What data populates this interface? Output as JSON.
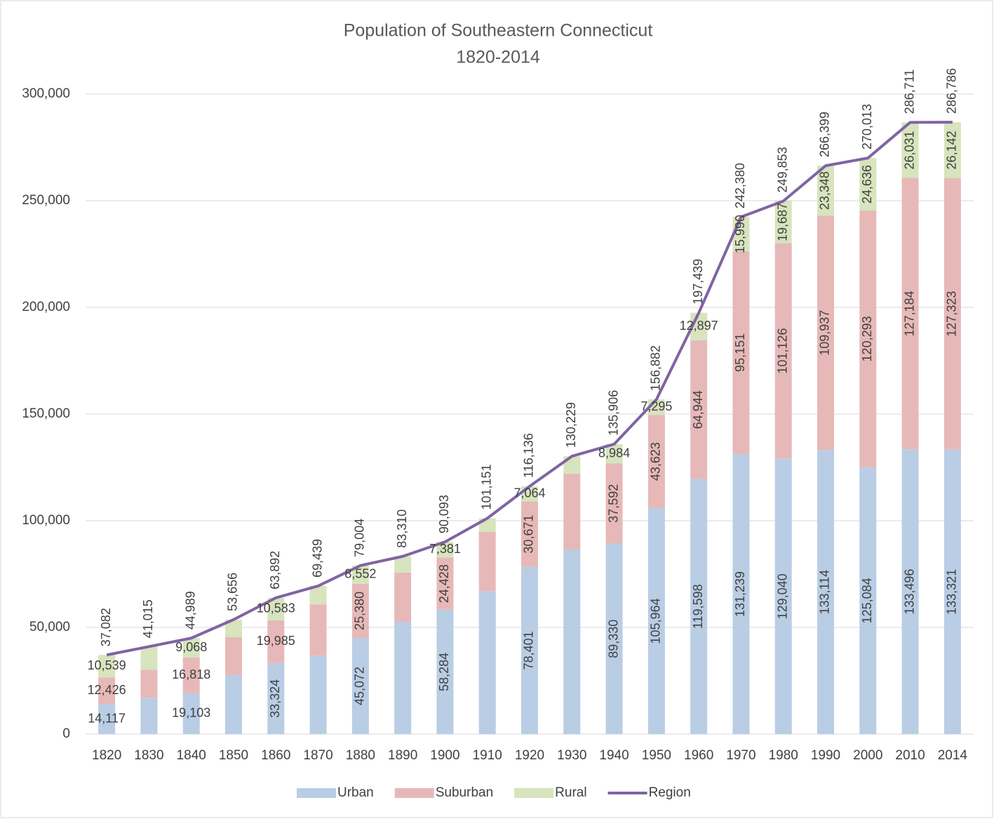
{
  "chart_data": {
    "type": "bar",
    "stacked": true,
    "title": "Population of Southeastern Connecticut",
    "subtitle": "1820-2014",
    "categories": [
      "1820",
      "1830",
      "1840",
      "1850",
      "1860",
      "1870",
      "1880",
      "1890",
      "1900",
      "1910",
      "1920",
      "1930",
      "1940",
      "1950",
      "1960",
      "1970",
      "1980",
      "1990",
      "2000",
      "2010",
      "2014"
    ],
    "series": [
      {
        "name": "Urban",
        "color": "#b9cde5",
        "values": [
          14117,
          17000,
          19103,
          27500,
          33324,
          36800,
          45072,
          52500,
          58284,
          67000,
          78401,
          86500,
          89330,
          105964,
          119598,
          131239,
          129040,
          133114,
          125084,
          133496,
          133321
        ],
        "value_labels": [
          "14,117",
          null,
          "19,103",
          null,
          "33,324",
          null,
          "45,072",
          null,
          "58,284",
          null,
          "78,401",
          null,
          "89,330",
          "105,964",
          "119,598",
          "131,239",
          "129,040",
          "133,114",
          "125,084",
          "133,496",
          "133,321"
        ]
      },
      {
        "name": "Suburban",
        "color": "#e6b9b8",
        "values": [
          12426,
          13200,
          16818,
          18000,
          19985,
          24000,
          25380,
          23200,
          24428,
          27800,
          30671,
          35500,
          37592,
          43623,
          64944,
          95151,
          101126,
          109937,
          120293,
          127184,
          127323
        ],
        "value_labels": [
          "12,426",
          null,
          "16,818",
          null,
          "19,985",
          null,
          "25,380",
          null,
          "24,428",
          null,
          "30,671",
          null,
          "37,592",
          "43,623",
          "64,944",
          "95,151",
          "101,126",
          "109,937",
          "120,293",
          "127,184",
          "127,323"
        ]
      },
      {
        "name": "Rural",
        "color": "#d7e4bd",
        "values": [
          10539,
          10815,
          9068,
          8156,
          10583,
          8639,
          8552,
          7610,
          7381,
          6351,
          7064,
          8229,
          8984,
          7295,
          12897,
          15990,
          19687,
          23348,
          24636,
          26031,
          26142
        ],
        "value_labels": [
          "10,539",
          null,
          "9,068",
          null,
          "10,583",
          null,
          "8,552",
          null,
          "7,381",
          null,
          "7,064",
          null,
          "8,984",
          "7,295",
          "12,897",
          "15,990",
          "19,687",
          "23,348",
          "24,636",
          "26,031",
          "26,142"
        ]
      },
      {
        "name": "Region",
        "type": "line",
        "color": "#8064a2",
        "values": [
          37082,
          41015,
          44989,
          53656,
          63892,
          69439,
          79004,
          83310,
          90093,
          101151,
          116136,
          130229,
          135906,
          156882,
          197439,
          242380,
          249853,
          266399,
          270013,
          286711,
          286786
        ],
        "value_labels": [
          "37,082",
          "41,015",
          "44,989",
          "53,656",
          "63,892",
          "69,439",
          "79,004",
          "83,310",
          "90,093",
          "101,151",
          "116,136",
          "130,229",
          "135,906",
          "156,882",
          "197,439",
          "242,380",
          "249,853",
          "266,399",
          "270,013",
          "286,711",
          "286,786"
        ]
      }
    ],
    "ylim": [
      0,
      300000
    ],
    "yticks": [
      0,
      {
        "value": 50000,
        "label": "50,000"
      },
      {
        "value": 100000,
        "label": "100,000"
      },
      {
        "value": 150000,
        "label": "150,000"
      },
      {
        "value": 200000,
        "label": "200,000"
      },
      {
        "value": 250000,
        "label": "250,000"
      },
      {
        "value": 300000,
        "label": "300,000"
      }
    ],
    "grid": true,
    "legend": "bottom"
  }
}
